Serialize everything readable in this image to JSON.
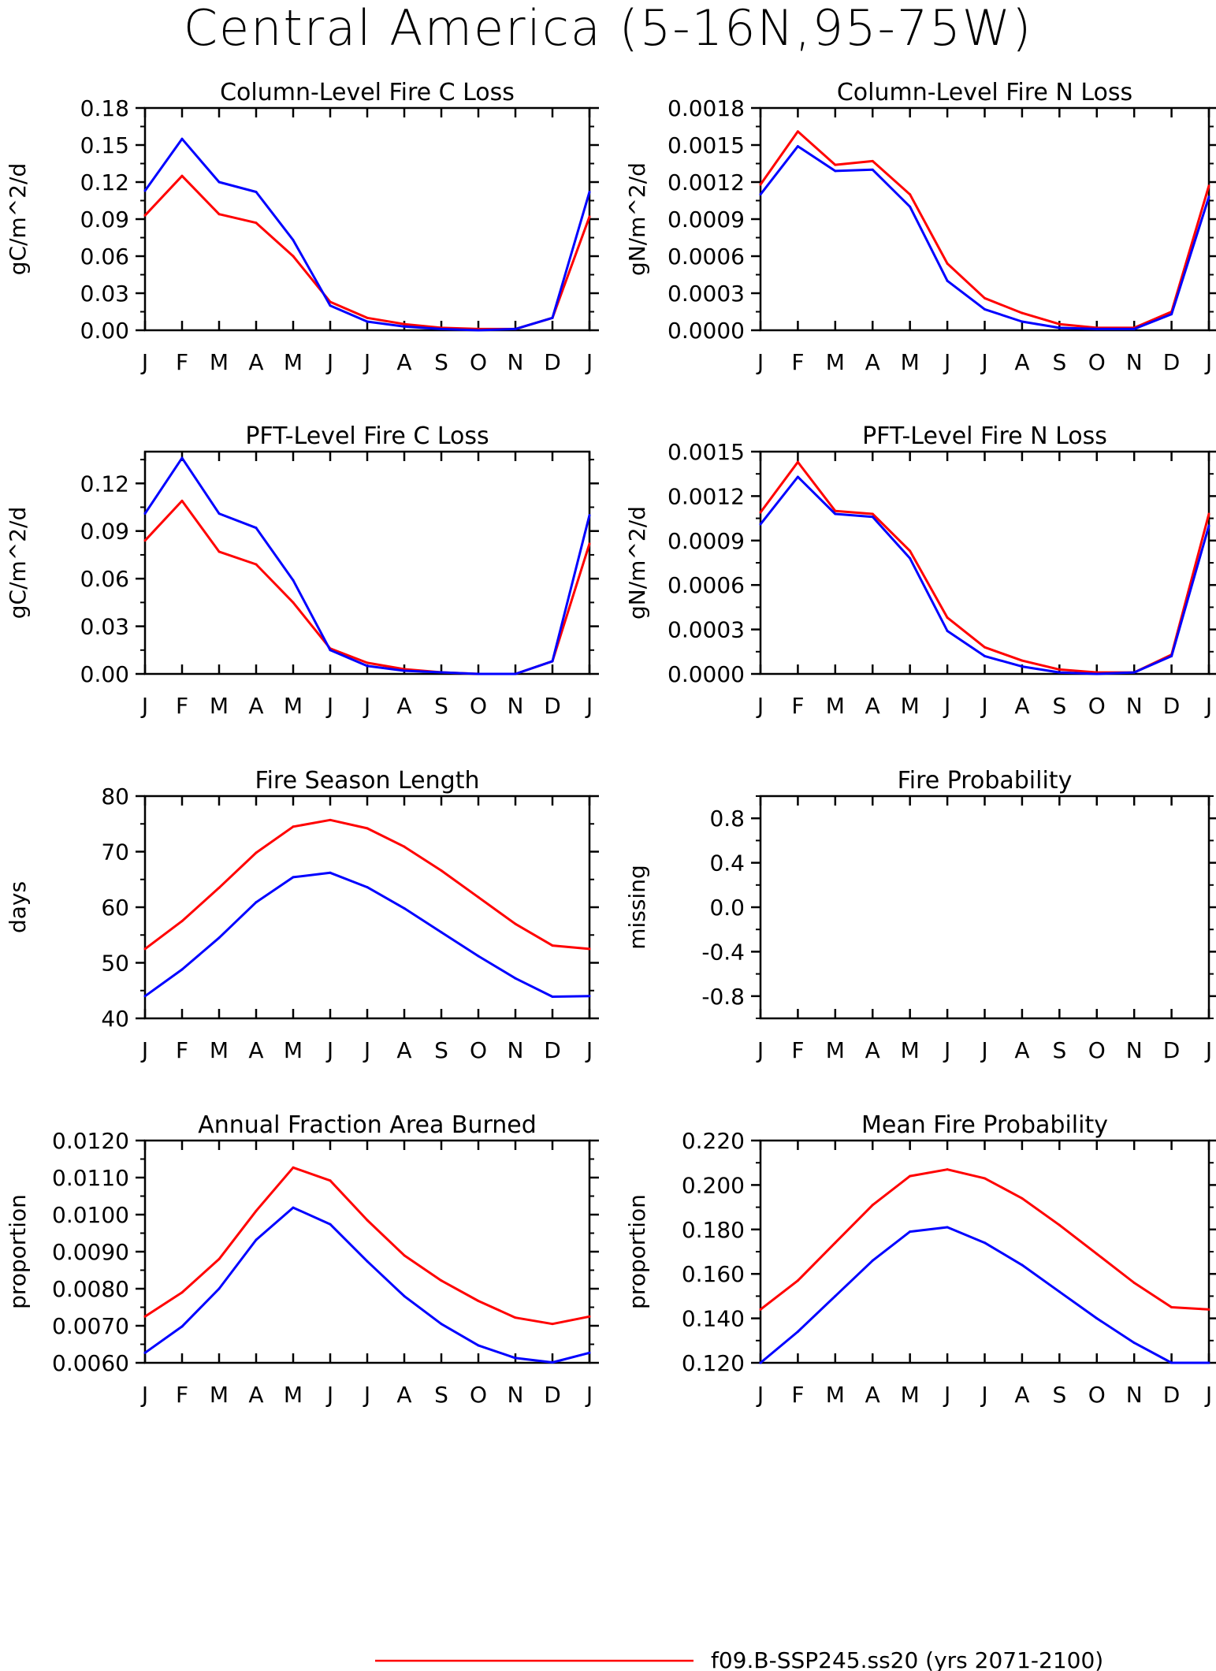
{
  "figure": {
    "title": "Central America (5-16N,95-75W)",
    "legend": [
      {
        "label": "f09.B-SSP245.ss20 (yrs 2071-2100)",
        "color": "#ff0000"
      }
    ]
  },
  "chart_data": [
    {
      "type": "line",
      "title": "Column-Level Fire C Loss",
      "ylabel": "gC/m^2/d",
      "categories": [
        "J",
        "F",
        "M",
        "A",
        "M",
        "J",
        "J",
        "A",
        "S",
        "O",
        "N",
        "D",
        "J"
      ],
      "ylim": [
        0,
        0.18
      ],
      "yticks": [
        "0.00",
        "0.03",
        "0.06",
        "0.09",
        "0.12",
        "0.15",
        "0.18"
      ],
      "yticks_values": [
        0,
        0.03,
        0.06,
        0.09,
        0.12,
        0.15,
        0.18
      ],
      "series": [
        {
          "color": "#ff0000",
          "values": [
            0.093,
            0.125,
            0.094,
            0.087,
            0.06,
            0.023,
            0.01,
            0.005,
            0.002,
            0.001,
            0.001,
            0.01,
            0.092
          ]
        },
        {
          "color": "#0000ff",
          "values": [
            0.113,
            0.155,
            0.12,
            0.112,
            0.073,
            0.02,
            0.007,
            0.003,
            0.001,
            0.0,
            0.001,
            0.01,
            0.112
          ]
        }
      ]
    },
    {
      "type": "line",
      "title": "Column-Level Fire N Loss",
      "ylabel": "gN/m^2/d",
      "categories": [
        "J",
        "F",
        "M",
        "A",
        "M",
        "J",
        "J",
        "A",
        "S",
        "O",
        "N",
        "D",
        "J"
      ],
      "ylim": [
        0,
        0.0018
      ],
      "yticks": [
        "0.0000",
        "0.0003",
        "0.0006",
        "0.0009",
        "0.0012",
        "0.0015",
        "0.0018"
      ],
      "yticks_values": [
        0,
        0.0003,
        0.0006,
        0.0009,
        0.0012,
        0.0015,
        0.0018
      ],
      "series": [
        {
          "color": "#ff0000",
          "values": [
            0.00118,
            0.00161,
            0.00134,
            0.00137,
            0.0011,
            0.00054,
            0.00026,
            0.00014,
            5e-05,
            2e-05,
            2e-05,
            0.00015,
            0.00117
          ]
        },
        {
          "color": "#0000ff",
          "values": [
            0.0011,
            0.00149,
            0.00129,
            0.0013,
            0.001,
            0.0004,
            0.00017,
            7e-05,
            2e-05,
            1e-05,
            1e-05,
            0.00013,
            0.00108
          ]
        }
      ]
    },
    {
      "type": "line",
      "title": "PFT-Level Fire C Loss",
      "ylabel": "gC/m^2/d",
      "categories": [
        "J",
        "F",
        "M",
        "A",
        "M",
        "J",
        "J",
        "A",
        "S",
        "O",
        "N",
        "D",
        "J"
      ],
      "ylim": [
        0,
        0.14
      ],
      "yticks": [
        "0.00",
        "0.03",
        "0.06",
        "0.09",
        "0.12"
      ],
      "yticks_values": [
        0,
        0.03,
        0.06,
        0.09,
        0.12
      ],
      "series": [
        {
          "color": "#ff0000",
          "values": [
            0.084,
            0.109,
            0.077,
            0.069,
            0.045,
            0.016,
            0.007,
            0.003,
            0.001,
            0.0,
            0.0,
            0.008,
            0.082
          ]
        },
        {
          "color": "#0000ff",
          "values": [
            0.101,
            0.136,
            0.101,
            0.092,
            0.059,
            0.015,
            0.005,
            0.002,
            0.001,
            0.0,
            0.0,
            0.008,
            0.1
          ]
        }
      ]
    },
    {
      "type": "line",
      "title": "PFT-Level Fire N Loss",
      "ylabel": "gN/m^2/d",
      "categories": [
        "J",
        "F",
        "M",
        "A",
        "M",
        "J",
        "J",
        "A",
        "S",
        "O",
        "N",
        "D",
        "J"
      ],
      "ylim": [
        0,
        0.0015
      ],
      "yticks": [
        "0.0000",
        "0.0003",
        "0.0006",
        "0.0009",
        "0.0012",
        "0.0015"
      ],
      "yticks_values": [
        0,
        0.0003,
        0.0006,
        0.0009,
        0.0012,
        0.0015
      ],
      "series": [
        {
          "color": "#ff0000",
          "values": [
            0.00109,
            0.00143,
            0.0011,
            0.00108,
            0.00083,
            0.00038,
            0.00018,
            9e-05,
            3e-05,
            1e-05,
            1e-05,
            0.00013,
            0.00108
          ]
        },
        {
          "color": "#0000ff",
          "values": [
            0.00101,
            0.00133,
            0.00108,
            0.00106,
            0.00078,
            0.00029,
            0.00012,
            5e-05,
            1e-05,
            0.0,
            1e-05,
            0.00012,
            0.001
          ]
        }
      ]
    },
    {
      "type": "line",
      "title": "Fire Season Length",
      "ylabel": "days",
      "categories": [
        "J",
        "F",
        "M",
        "A",
        "M",
        "J",
        "J",
        "A",
        "S",
        "O",
        "N",
        "D",
        "J"
      ],
      "ylim": [
        40,
        80
      ],
      "yticks": [
        "40",
        "50",
        "60",
        "70",
        "80"
      ],
      "yticks_values": [
        40,
        50,
        60,
        70,
        80
      ],
      "series": [
        {
          "color": "#ff0000",
          "values": [
            52.5,
            57.5,
            63.5,
            69.8,
            74.5,
            75.7,
            74.2,
            70.9,
            66.6,
            61.8,
            57.0,
            53.1,
            52.5
          ]
        },
        {
          "color": "#0000ff",
          "values": [
            44.0,
            48.8,
            54.5,
            60.9,
            65.4,
            66.2,
            63.6,
            59.8,
            55.5,
            51.2,
            47.2,
            43.9,
            44.0
          ]
        }
      ]
    },
    {
      "type": "line",
      "title": "Fire Probability",
      "ylabel": "missing",
      "categories": [
        "J",
        "F",
        "M",
        "A",
        "M",
        "J",
        "J",
        "A",
        "S",
        "O",
        "N",
        "D",
        "J"
      ],
      "ylim": [
        -1,
        1
      ],
      "yticks": [
        "-0.8",
        "-0.4",
        "0.0",
        "0.4",
        "0.8"
      ],
      "yticks_values": [
        -0.8,
        -0.4,
        0,
        0.4,
        0.8
      ],
      "series": []
    },
    {
      "type": "line",
      "title": "Annual Fraction Area Burned",
      "ylabel": "proportion",
      "categories": [
        "J",
        "F",
        "M",
        "A",
        "M",
        "J",
        "J",
        "A",
        "S",
        "O",
        "N",
        "D",
        "J"
      ],
      "ylim": [
        0.006,
        0.012
      ],
      "yticks": [
        "0.0060",
        "0.0070",
        "0.0080",
        "0.0090",
        "0.0100",
        "0.0110",
        "0.0120"
      ],
      "yticks_values": [
        0.006,
        0.007,
        0.008,
        0.009,
        0.01,
        0.011,
        0.012
      ],
      "series": [
        {
          "color": "#ff0000",
          "values": [
            0.00725,
            0.0079,
            0.0088,
            0.0101,
            0.01127,
            0.01092,
            0.00985,
            0.0089,
            0.00822,
            0.00767,
            0.00722,
            0.00705,
            0.00725
          ]
        },
        {
          "color": "#0000ff",
          "values": [
            0.00627,
            0.00698,
            0.008,
            0.00932,
            0.01019,
            0.00974,
            0.00874,
            0.0078,
            0.00705,
            0.00647,
            0.00613,
            0.00601,
            0.00627
          ]
        }
      ]
    },
    {
      "type": "line",
      "title": "Mean Fire Probability",
      "ylabel": "proportion",
      "categories": [
        "J",
        "F",
        "M",
        "A",
        "M",
        "J",
        "J",
        "A",
        "S",
        "O",
        "N",
        "D",
        "J"
      ],
      "ylim": [
        0.12,
        0.22
      ],
      "yticks": [
        "0.120",
        "0.140",
        "0.160",
        "0.180",
        "0.200",
        "0.220"
      ],
      "yticks_values": [
        0.12,
        0.14,
        0.16,
        0.18,
        0.2,
        0.22
      ],
      "series": [
        {
          "color": "#ff0000",
          "values": [
            0.144,
            0.157,
            0.174,
            0.191,
            0.204,
            0.207,
            0.203,
            0.194,
            0.182,
            0.169,
            0.156,
            0.145,
            0.144
          ]
        },
        {
          "color": "#0000ff",
          "values": [
            0.12,
            0.134,
            0.15,
            0.166,
            0.179,
            0.181,
            0.174,
            0.164,
            0.152,
            0.14,
            0.129,
            0.12,
            0.12
          ]
        }
      ]
    }
  ]
}
